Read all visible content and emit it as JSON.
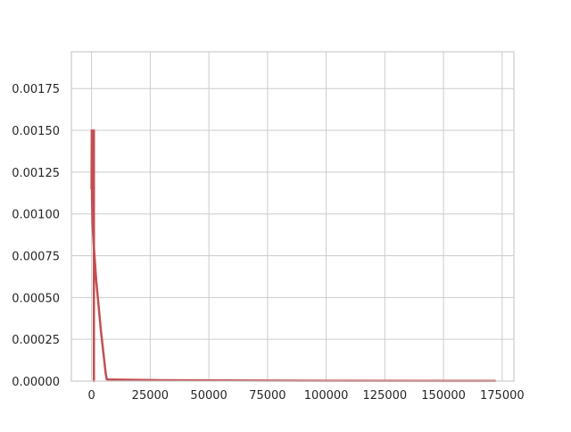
{
  "chart_data": {
    "type": "line",
    "title": "",
    "xlabel": "",
    "ylabel": "",
    "xlim": [
      -8600,
      180000
    ],
    "ylim": [
      0,
      0.00197
    ],
    "grid": true,
    "x_ticks": [
      0,
      25000,
      50000,
      75000,
      100000,
      125000,
      150000,
      175000
    ],
    "x_tick_labels": [
      "0",
      "25000",
      "50000",
      "75000",
      "100000",
      "125000",
      "150000",
      "175000"
    ],
    "y_ticks": [
      0,
      0.00025,
      0.0005,
      0.00075,
      0.001,
      0.00125,
      0.0015,
      0.00175
    ],
    "y_tick_labels": [
      "0.00000",
      "0.00025",
      "0.00050",
      "0.00075",
      "0.00100",
      "0.00125",
      "0.00150",
      "0.00175"
    ],
    "series": [
      {
        "color": "#c44e52",
        "x": [
          0,
          100,
          150,
          200,
          400,
          1000,
          2000,
          4000,
          6000,
          6500,
          30000,
          100000,
          172000
        ],
        "y": [
          0.00115,
          0.0015,
          0.0014,
          0.0011,
          0.00095,
          0.0008,
          0.0006,
          0.0003,
          5e-05,
          1e-05,
          5e-06,
          2e-06,
          1e-06
        ]
      },
      {
        "color": "#c44e52",
        "x": [
          1000,
          1000
        ],
        "y": [
          0.0015,
          0.0
        ]
      }
    ],
    "colors": {
      "line": "#c44e52",
      "grid": "#cccccc",
      "background": "#ffffff",
      "text": "#262626"
    }
  }
}
